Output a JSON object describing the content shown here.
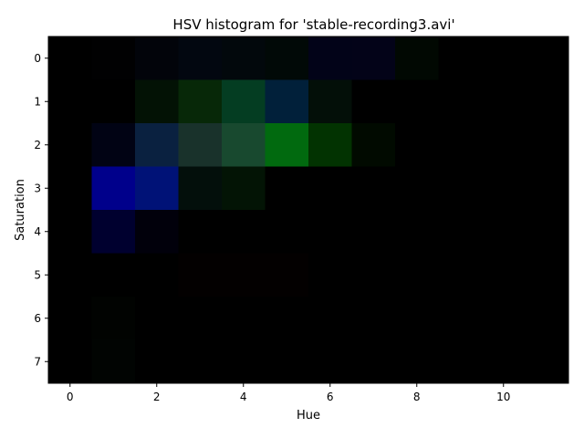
{
  "chart_data": {
    "type": "heatmap",
    "title": "HSV histogram for 'stable-recording3.avi'",
    "xlabel": "Hue",
    "ylabel": "Saturation",
    "x_ticks": [
      "0",
      "2",
      "4",
      "6",
      "8",
      "10"
    ],
    "y_ticks": [
      "0",
      "1",
      "2",
      "3",
      "4",
      "5",
      "6",
      "7"
    ],
    "x_bins": [
      0,
      1,
      2,
      3,
      4,
      5,
      6,
      7,
      8,
      9,
      10,
      11
    ],
    "y_bins": [
      0,
      1,
      2,
      3,
      4,
      5,
      6,
      7
    ],
    "xlim": [
      -0.5,
      11.5
    ],
    "ylim": [
      7.5,
      -0.5
    ],
    "cell_colors": [
      [
        "#000000",
        "#010102",
        "#02040a",
        "#020710",
        "#02080c",
        "#010907",
        "#020318",
        "#030318",
        "#010802",
        "#000000",
        "#000000",
        "#000000"
      ],
      [
        "#000000",
        "#000000",
        "#031205",
        "#072808",
        "#043d22",
        "#01203a",
        "#030f08",
        "#000000",
        "#000000",
        "#000000",
        "#000000",
        "#000000"
      ],
      [
        "#000000",
        "#010314",
        "#0a2140",
        "#19322b",
        "#18492f",
        "#016a0f",
        "#023301",
        "#010a00",
        "#000000",
        "#000000",
        "#000000",
        "#000000"
      ],
      [
        "#000000",
        "#00008b",
        "#001277",
        "#030f0b",
        "#031405",
        "#000000",
        "#000000",
        "#000000",
        "#000000",
        "#000000",
        "#000000",
        "#000000"
      ],
      [
        "#000000",
        "#00002f",
        "#01000b",
        "#000000",
        "#000000",
        "#000000",
        "#000000",
        "#000000",
        "#000000",
        "#000000",
        "#000000",
        "#000000"
      ],
      [
        "#000000",
        "#000000",
        "#000000",
        "#030000",
        "#030000",
        "#030000",
        "#000000",
        "#000000",
        "#000000",
        "#000000",
        "#000000",
        "#000000"
      ],
      [
        "#000000",
        "#010301",
        "#000000",
        "#000000",
        "#000000",
        "#000000",
        "#000000",
        "#000000",
        "#000000",
        "#000000",
        "#000000",
        "#000000"
      ],
      [
        "#000000",
        "#010402",
        "#000000",
        "#000000",
        "#000000",
        "#000000",
        "#000000",
        "#000000",
        "#000000",
        "#000000",
        "#000000",
        "#000000"
      ]
    ],
    "grid": false,
    "legend": "none"
  }
}
